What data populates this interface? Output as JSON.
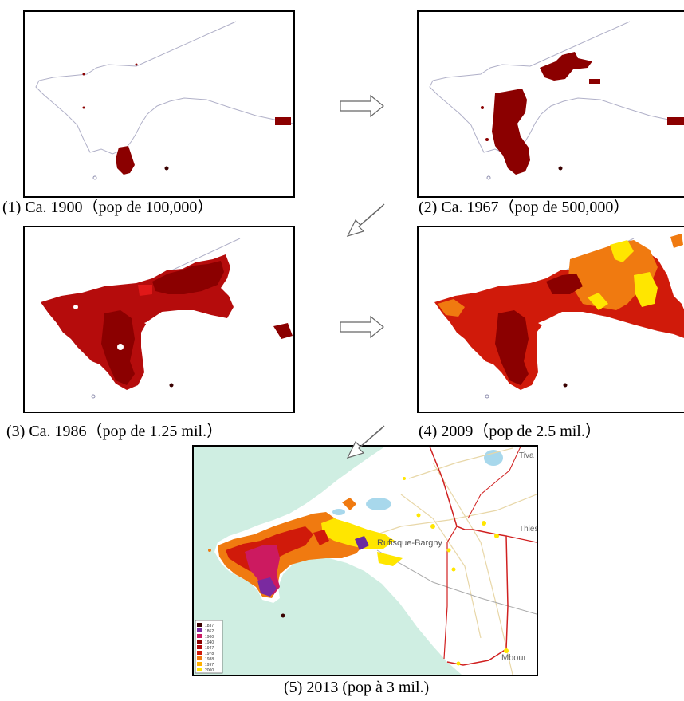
{
  "panels": [
    {
      "id": 1,
      "caption": "(1) Ca. 1900（pop de 100,000）"
    },
    {
      "id": 2,
      "caption": "(2) Ca. 1967（pop de 500,000）"
    },
    {
      "id": 3,
      "caption": "(3) Ca. 1986（pop de 1.25 mil.）"
    },
    {
      "id": 4,
      "caption": "(4) 2009（pop de 2.5 mil.）"
    },
    {
      "id": 5,
      "caption": "(5) 2013 (pop à 3 mil.)"
    }
  ],
  "map5_labels": {
    "rufisque": "Rufisque-Bargny",
    "thies": "Thies",
    "tiva": "Tiva",
    "mbour": "Mbour"
  },
  "map5_legend": [
    "1837",
    "1862",
    "1900",
    "1940",
    "1947",
    "1978",
    "1988",
    "1997",
    "2000"
  ],
  "colors": {
    "urban_dark": "#8b0000",
    "urban_red": "#cc1010",
    "urban_orange": "#f07a10",
    "urban_yellow": "#ffe600",
    "sea": "#cfeee2",
    "boundary": "#d02020"
  }
}
